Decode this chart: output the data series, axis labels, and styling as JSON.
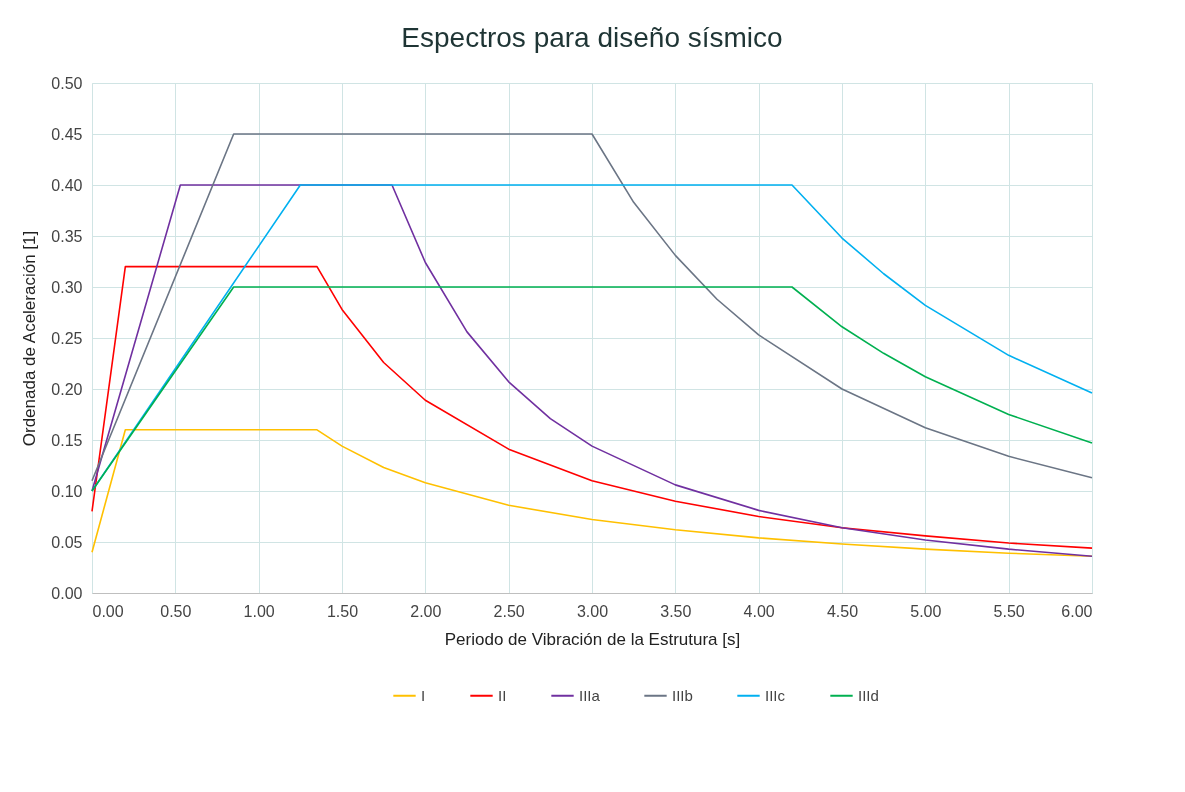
{
  "chart_data": {
    "type": "line",
    "title": "Espectros para diseño sísmico",
    "xlabel": "Periodo de Vibración de la Estrutura [s]",
    "ylabel": "Ordenada de Aceleración [1]",
    "xlim": [
      0,
      6
    ],
    "ylim": [
      0,
      0.5
    ],
    "xticks": [
      {
        "value": 0,
        "label": "0.00"
      },
      {
        "value": 0.5,
        "label": "0.50"
      },
      {
        "value": 1,
        "label": "1.00"
      },
      {
        "value": 1.5,
        "label": "1.50"
      },
      {
        "value": 2,
        "label": "2.00"
      },
      {
        "value": 2.5,
        "label": "2.50"
      },
      {
        "value": 3,
        "label": "3.00"
      },
      {
        "value": 3.5,
        "label": "3.50"
      },
      {
        "value": 4,
        "label": "4.00"
      },
      {
        "value": 4.5,
        "label": "4.50"
      },
      {
        "value": 5,
        "label": "5.00"
      },
      {
        "value": 5.5,
        "label": "5.50"
      },
      {
        "value": 6,
        "label": "6.00"
      }
    ],
    "yticks": [
      {
        "value": 0,
        "label": "0.00"
      },
      {
        "value": 0.05,
        "label": "0.05"
      },
      {
        "value": 0.1,
        "label": "0.10"
      },
      {
        "value": 0.15,
        "label": "0.15"
      },
      {
        "value": 0.2,
        "label": "0.20"
      },
      {
        "value": 0.25,
        "label": "0.25"
      },
      {
        "value": 0.3,
        "label": "0.30"
      },
      {
        "value": 0.35,
        "label": "0.35"
      },
      {
        "value": 0.4,
        "label": "0.40"
      },
      {
        "value": 0.45,
        "label": "0.45"
      },
      {
        "value": 0.5,
        "label": "0.50"
      }
    ],
    "grid": true,
    "legend": "bottom",
    "marker": "none",
    "line_style": "solid",
    "series": [
      {
        "name": "I",
        "color": "#ffc000",
        "x": [
          0,
          0.2,
          1.35,
          1.5,
          1.75,
          2,
          2.5,
          3,
          3.5,
          4,
          4.5,
          5,
          5.5,
          6
        ],
        "values": [
          0.04,
          0.16,
          0.16,
          0.144,
          0.123,
          0.108,
          0.086,
          0.072,
          0.062,
          0.054,
          0.048,
          0.043,
          0.039,
          0.036
        ]
      },
      {
        "name": "II",
        "color": "#ff0000",
        "x": [
          0,
          0.2,
          1.35,
          1.5,
          1.75,
          2,
          2.5,
          3,
          3.5,
          4,
          4.5,
          5,
          5.5,
          6
        ],
        "values": [
          0.08,
          0.32,
          0.32,
          0.278,
          0.226,
          0.189,
          0.141,
          0.11,
          0.09,
          0.075,
          0.064,
          0.056,
          0.049,
          0.044
        ]
      },
      {
        "name": "IIIa",
        "color": "#7030a0",
        "x": [
          0,
          0.53,
          1.8,
          2,
          2.25,
          2.5,
          2.75,
          3,
          3.5,
          4,
          4.5,
          5,
          5.5,
          6
        ],
        "values": [
          0.1,
          0.4,
          0.4,
          0.324,
          0.256,
          0.207,
          0.171,
          0.144,
          0.106,
          0.081,
          0.064,
          0.052,
          0.043,
          0.036
        ]
      },
      {
        "name": "IIIb",
        "color": "#6b7585",
        "x": [
          0,
          0.85,
          3,
          3.25,
          3.5,
          3.75,
          4,
          4.5,
          5,
          5.5,
          6
        ],
        "values": [
          0.11,
          0.45,
          0.45,
          0.383,
          0.331,
          0.288,
          0.253,
          0.2,
          0.162,
          0.134,
          0.113
        ]
      },
      {
        "name": "IIIc",
        "color": "#00b0f0",
        "x": [
          0,
          1.25,
          4.2,
          4.5,
          4.75,
          5,
          5.5,
          6
        ],
        "values": [
          0.1,
          0.4,
          0.4,
          0.348,
          0.313,
          0.282,
          0.233,
          0.196
        ]
      },
      {
        "name": "IIId",
        "color": "#00b050",
        "x": [
          0,
          0.85,
          4.2,
          4.5,
          4.75,
          5,
          5.5,
          6
        ],
        "values": [
          0.1,
          0.3,
          0.3,
          0.261,
          0.235,
          0.212,
          0.175,
          0.147
        ]
      }
    ]
  }
}
